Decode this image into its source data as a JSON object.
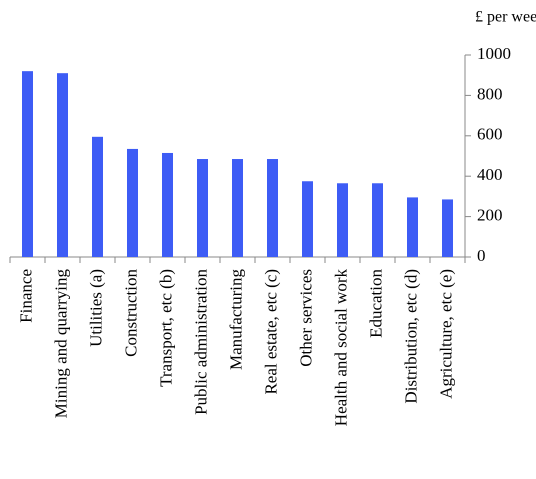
{
  "chart_data": {
    "type": "bar",
    "y_axis_title": "£ per week",
    "categories": [
      "Finance",
      "Mining and quarrying",
      "Utilities (a)",
      "Construction",
      "Transport, etc (b)",
      "Public administration",
      "Manufacturing",
      "Real estate, etc (c)",
      "Other services",
      "Health and social work",
      "Education",
      "Distribution, etc (d)",
      "Agriculture, etc (e)"
    ],
    "values": [
      920,
      910,
      595,
      535,
      515,
      485,
      485,
      485,
      375,
      365,
      365,
      295,
      285
    ],
    "color": "#3d5cf5",
    "ylim": [
      0,
      1000
    ],
    "yticks": [
      0,
      200,
      400,
      600,
      800,
      1000
    ],
    "grid": false,
    "y_axis_side": "right"
  }
}
